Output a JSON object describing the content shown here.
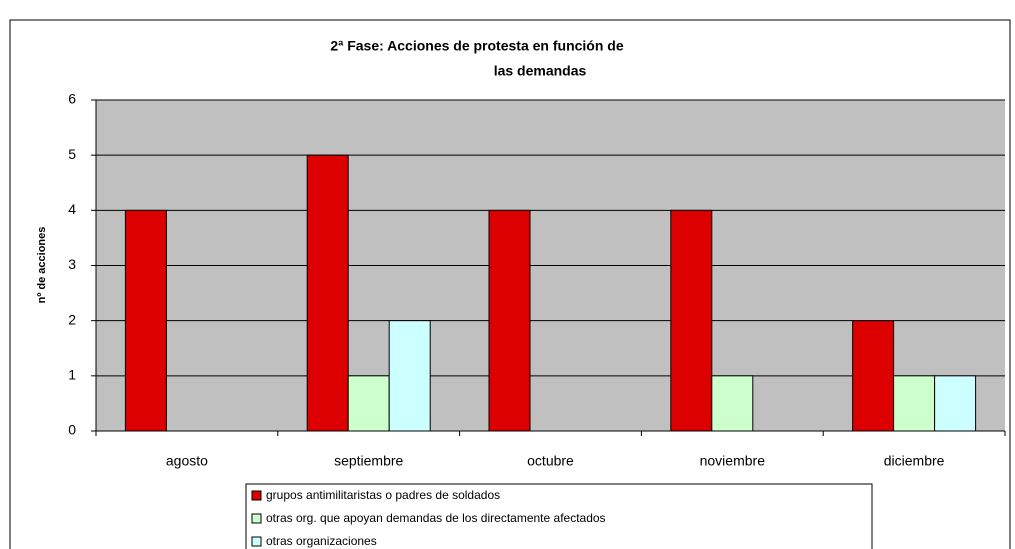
{
  "chart_data": {
    "type": "bar",
    "title": [
      "2ª Fase: Acciones de protesta en función de",
      "las demandas"
    ],
    "y_label": "nº de acciones",
    "categories": [
      "agosto",
      "septiembre",
      "octubre",
      "noviembre",
      "diciembre"
    ],
    "series": [
      {
        "name": "grupos antimilitaristas o padres de soldados",
        "color": "#dd0000",
        "values": [
          4,
          5,
          4,
          4,
          2
        ]
      },
      {
        "name": "otras org. que apoyan demandas de los directamente afectados",
        "color": "#ccffcc",
        "values": [
          0,
          1,
          0,
          1,
          1
        ]
      },
      {
        "name": "otras organizaciones",
        "color": "#ccffff",
        "values": [
          0,
          2,
          0,
          0,
          1
        ]
      }
    ],
    "ylim": [
      0,
      6
    ],
    "yticks": [
      0,
      1,
      2,
      3,
      4,
      5,
      6
    ],
    "grid": true,
    "legend": "bottom"
  }
}
